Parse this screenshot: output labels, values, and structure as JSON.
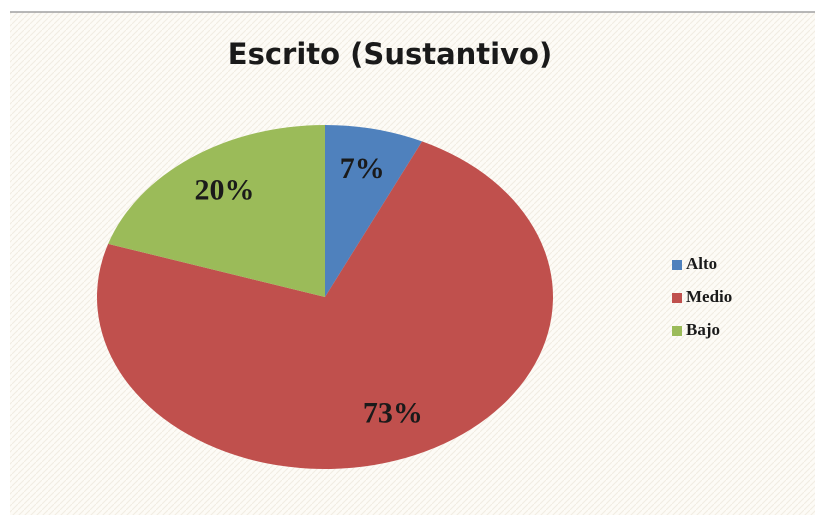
{
  "chart_data": {
    "type": "pie",
    "title": "Escrito (Sustantivo)",
    "categories": [
      "Alto",
      "Medio",
      "Bajo"
    ],
    "values": [
      7,
      73,
      20
    ],
    "value_labels": [
      "7%",
      "73%",
      "20%"
    ],
    "colors": [
      "#4f81bd",
      "#c0504d",
      "#9bbb59"
    ],
    "legend": "right"
  }
}
